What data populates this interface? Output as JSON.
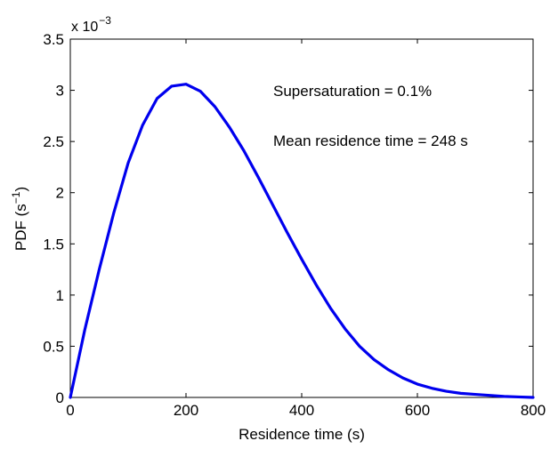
{
  "chart_data": {
    "type": "line",
    "title": "",
    "xlabel": "Residence time (s)",
    "ylabel_main": "PDF (s",
    "ylabel_sup": "−1",
    "ylabel_close": ")",
    "y_multiplier_base": "x 10",
    "y_multiplier_exp": "−3",
    "xlim": [
      0,
      800
    ],
    "ylim": [
      0,
      3.5
    ],
    "x_ticks": [
      0,
      200,
      400,
      600,
      800
    ],
    "x_tick_labels": [
      "0",
      "200",
      "400",
      "600",
      "800"
    ],
    "y_ticks": [
      0,
      0.5,
      1,
      1.5,
      2,
      2.5,
      3,
      3.5
    ],
    "y_tick_labels": [
      "0",
      "0.5",
      "1",
      "1.5",
      "2",
      "2.5",
      "3",
      "3.5"
    ],
    "grid": false,
    "series_color": "#0000ee",
    "annotations": [
      "Supersaturation = 0.1%",
      "Mean residence time = 248 s"
    ],
    "series": [
      {
        "x": [
          0,
          25,
          50,
          75,
          100,
          125,
          150,
          175,
          200,
          225,
          250,
          275,
          300,
          325,
          350,
          375,
          400,
          425,
          450,
          475,
          500,
          525,
          550,
          575,
          600,
          625,
          650,
          675,
          700,
          725,
          750,
          775,
          800
        ],
        "values": [
          0,
          0.66,
          1.25,
          1.8,
          2.29,
          2.66,
          2.92,
          3.04,
          3.06,
          2.99,
          2.84,
          2.64,
          2.41,
          2.15,
          1.88,
          1.61,
          1.35,
          1.1,
          0.87,
          0.67,
          0.5,
          0.37,
          0.27,
          0.19,
          0.13,
          0.09,
          0.06,
          0.04,
          0.03,
          0.02,
          0.01,
          0.005,
          0.0
        ]
      }
    ]
  }
}
